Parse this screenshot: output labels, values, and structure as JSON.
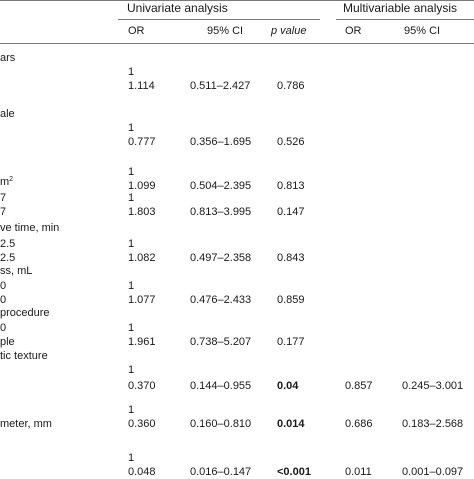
{
  "header": {
    "group_univariate": "Univariate analysis",
    "group_multivariable": "Multivariable analysis",
    "columns": {
      "uni_or": "OR",
      "uni_ci": "95% CI",
      "uni_p": "p value",
      "multi_or": "OR",
      "multi_ci": "95% CI"
    }
  },
  "rows": [
    {
      "label": "ars"
    },
    {
      "label": "",
      "or": "1"
    },
    {
      "label": "",
      "or": "1.114",
      "ci": "0.511–2.427",
      "p": "0.786"
    },
    {
      "label": "ale"
    },
    {
      "label": "",
      "or": "1"
    },
    {
      "label": "",
      "or": "0.777",
      "ci": "0.356–1.695",
      "p": "0.526"
    },
    {
      "label": ""
    },
    {
      "label": "",
      "or": "1"
    },
    {
      "label": "",
      "or": "1.099",
      "ci": "0.504–2.395",
      "p": "0.813"
    },
    {
      "label": "m",
      "label_sup": "2"
    },
    {
      "label": "7",
      "or": "1"
    },
    {
      "label": "7",
      "or": "1.803",
      "ci": "0.813–3.995",
      "p": "0.147"
    },
    {
      "label": "ve time, min"
    },
    {
      "label": "2.5",
      "or": "1"
    },
    {
      "label": "2.5",
      "or": "1.082",
      "ci": "0.497–2.358",
      "p": "0.843"
    },
    {
      "label": "ss, mL"
    },
    {
      "label": "0",
      "or": "1"
    },
    {
      "label": "0",
      "or": "1.077",
      "ci": "0.476–2.433",
      "p": "0.859"
    },
    {
      "label": "procedure"
    },
    {
      "label": "0",
      "or": "1"
    },
    {
      "label": "ple",
      "or": "1.961",
      "ci": "0.738–5.207",
      "p": "0.177"
    },
    {
      "label": "tic texture"
    },
    {
      "label": "",
      "or": "1"
    },
    {
      "label": "",
      "or": "0.370",
      "ci": "0.144–0.955",
      "p": "0.04",
      "p_bold": true,
      "mor": "0.857",
      "mci": "0.245–3.001"
    },
    {
      "label": "meter, mm"
    },
    {
      "label": "",
      "or": "1"
    },
    {
      "label": "",
      "or": "0.360",
      "ci": "0.160–0.810",
      "p": "0.014",
      "p_bold": true,
      "mor": "0.686",
      "mci": "0.183–2.568"
    },
    {
      "label": ""
    },
    {
      "label": "",
      "or": "1"
    },
    {
      "label": "",
      "or": "0.048",
      "ci": "0.016–0.147",
      "p": "<0.001",
      "p_bold": true,
      "mor": "0.011",
      "mci": "0.001–0.097"
    }
  ]
}
